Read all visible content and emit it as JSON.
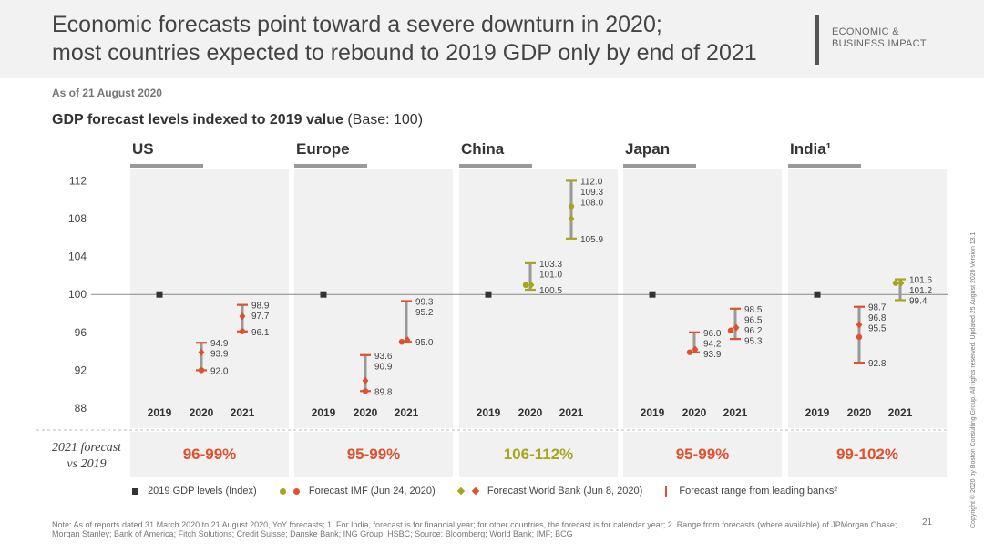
{
  "header": {
    "title_line1": "Economic forecasts point toward a severe downturn in 2020;",
    "title_line2": "most countries expected to rebound to 2019 GDP only by end of 2021",
    "tag_line1": "ECONOMIC &",
    "tag_line2": "BUSINESS IMPACT"
  },
  "as_of": "As of 21 August 2020",
  "chart_title": "GDP forecast levels indexed to 2019 value",
  "chart_title_base": "(Base: 100)",
  "bottom_label_line1": "2021 forecast",
  "bottom_label_line2": "vs 2019",
  "legend": {
    "gdp": "2019 GDP levels (Index)",
    "imf": "Forecast IMF (Jun 24, 2020)",
    "wb": "Forecast World Bank (Jun 8, 2020)",
    "range": "Forecast range from leading banks²"
  },
  "note": "Note: As of reports dated 31 March 2020 to 21 August 2020, YoY forecasts; 1. For India, forecast is for financial year; for other countries, the forecast is for calendar year;  2. Range from forecasts (where available) of JPMorgan Chase; Morgan Stanley; Bank of America; Fitch Solutions; Credit Suisse; Danske Bank; ING Group; HSBC;  Source: Bloomberg; World Bank; IMF; BCG",
  "page_number": "21",
  "copyright": "Copyright © 2020 by Boston Consulting Group. All rights reserved. Updated 25 August 2020 Version 13.1",
  "colors": {
    "red": "#e0502a",
    "green": "#a7a51e",
    "gray_range": "#999999",
    "panel": "#f1f1f1",
    "dark": "#333333"
  },
  "chart_data": {
    "type": "range",
    "ylim": [
      88,
      112
    ],
    "yticks": [
      88,
      92,
      96,
      100,
      104,
      108,
      112
    ],
    "years": [
      "2019",
      "2020",
      "2021"
    ],
    "panels": [
      {
        "name": "US",
        "tone": "red",
        "summary": "96-99%",
        "v2019": 100,
        "y2020": {
          "range": [
            92.0,
            94.9
          ],
          "imf": 92.0,
          "wb": 93.9,
          "labels": [
            "94.9",
            "93.9",
            "92.0"
          ]
        },
        "y2021": {
          "range": [
            96.1,
            98.9
          ],
          "imf": 96.1,
          "wb": 97.7,
          "labels": [
            "98.9",
            "97.7",
            "96.1"
          ]
        }
      },
      {
        "name": "Europe",
        "tone": "red",
        "summary": "95-99%",
        "v2019": 100,
        "y2020": {
          "range": [
            89.8,
            93.6
          ],
          "imf": 89.8,
          "wb": 90.9,
          "labels": [
            "93.6",
            "90.9",
            "89.8"
          ]
        },
        "y2021": {
          "range": [
            95.0,
            99.3
          ],
          "imf": 95.0,
          "wb": 95.2,
          "labels": [
            "99.3",
            "95.2",
            "95.0"
          ]
        }
      },
      {
        "name": "China",
        "tone": "green",
        "summary": "106-112%",
        "v2019": 100,
        "y2020": {
          "range": [
            100.5,
            103.3
          ],
          "imf": 101.0,
          "wb": 101.0,
          "labels": [
            "103.3",
            "101.0",
            "100.5"
          ]
        },
        "y2021": {
          "range": [
            105.9,
            112.0
          ],
          "imf": 109.3,
          "wb": 108.0,
          "labels": [
            "112.0",
            "109.3",
            "108.0",
            "105.9"
          ]
        }
      },
      {
        "name": "Japan",
        "tone": "red",
        "summary": "95-99%",
        "v2019": 100,
        "y2020": {
          "range": [
            93.9,
            96.0
          ],
          "imf": 93.9,
          "wb": 94.2,
          "labels": [
            "96.0",
            "94.2",
            "93.9"
          ]
        },
        "y2021": {
          "range": [
            95.3,
            98.5
          ],
          "imf": 96.2,
          "wb": 96.5,
          "labels": [
            "98.5",
            "96.5",
            "96.2",
            "95.3"
          ]
        }
      },
      {
        "name": "India¹",
        "tone": "mixed",
        "summary": "99-102%",
        "v2019": 100,
        "y2020": {
          "range": [
            92.8,
            98.7
          ],
          "imf": 95.5,
          "wb": 96.8,
          "labels": [
            "98.7",
            "96.8",
            "95.5",
            "92.8"
          ]
        },
        "y2021": {
          "range": [
            99.4,
            101.6
          ],
          "imf": 101.2,
          "wb": 101.2,
          "labels": [
            "101.6",
            "101.2",
            "99.4"
          ]
        }
      }
    ]
  }
}
